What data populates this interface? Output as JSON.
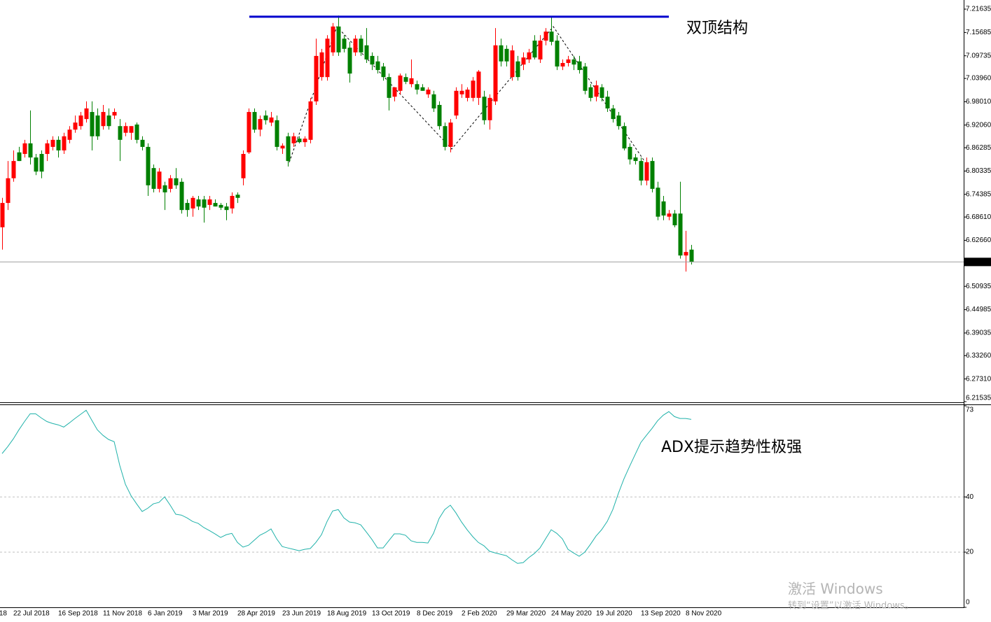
{
  "chart_data": [
    {
      "type": "candlestick",
      "categories": [
        null,
        null,
        "22 Jul 2018",
        null,
        null,
        null,
        null,
        null,
        null,
        null,
        "16 Sep 2018",
        null,
        null,
        null,
        null,
        null,
        null,
        null,
        "11 Nov 2018",
        null,
        null,
        null,
        null,
        null,
        null,
        null,
        "6 Jan 2019",
        null,
        null,
        null,
        null,
        null,
        null,
        null,
        "3 Mar 2019",
        null,
        null,
        null,
        null,
        null,
        null,
        null,
        "28 Apr 2019",
        null,
        null,
        null,
        null,
        null,
        null,
        null,
        "23 Jun 2019",
        null,
        null,
        null,
        null,
        null,
        null,
        null,
        "18 Aug 2019",
        null,
        null,
        null,
        null,
        null,
        null,
        null,
        "13 Oct 2019",
        null,
        null,
        null,
        null,
        null,
        null,
        null,
        "8 Dec 2019",
        null,
        null,
        null,
        null,
        null,
        null,
        null,
        "2 Feb 2020",
        null,
        null,
        null,
        null,
        null,
        null,
        null,
        "29 Mar 2020",
        null,
        null,
        null,
        null,
        null,
        null,
        null,
        "24 May 2020",
        null,
        null,
        null,
        null,
        null,
        null,
        null,
        "19 Jul 2020",
        null,
        null,
        null,
        null,
        null,
        null,
        null,
        "13 Sep 2020",
        null,
        null,
        null,
        null,
        null,
        null,
        null,
        "8 Nov 2020",
        null
      ],
      "x_edge_label": "18",
      "open": [
        6.66,
        6.722,
        6.785,
        6.851,
        6.847,
        6.874,
        6.838,
        6.847,
        6.847,
        6.865,
        6.883,
        6.856,
        6.883,
        6.909,
        6.918,
        6.936,
        6.954,
        6.945,
        6.918,
        6.945,
        6.945,
        6.918,
        6.901,
        6.901,
        6.922,
        6.883,
        6.865,
        6.811,
        6.758,
        6.767,
        6.758,
        6.785,
        6.776,
        6.722,
        6.708,
        6.731,
        6.731,
        6.717,
        6.722,
        6.717,
        6.713,
        6.708,
        6.743,
        6.785,
        6.851,
        6.954,
        6.909,
        6.945,
        6.927,
        6.933,
        6.861,
        6.892,
        6.874,
        6.886,
        6.877,
        6.883,
        6.981,
        7.043,
        7.043,
        7.106,
        7.172,
        7.141,
        7.118,
        7.106,
        7.141,
        7.124,
        7.097,
        7.083,
        7.07,
        7.043,
        6.993,
        7.008,
        7.043,
        7.025,
        7.025,
        7.017,
        6.999,
        6.999,
        6.972,
        6.918,
        6.865,
        6.945,
        6.999,
        6.99,
        6.99,
        6.99,
        6.993,
        6.933,
        6.981,
        7.124,
        7.115,
        7.043,
        7.083,
        7.075,
        7.088,
        7.136,
        7.088,
        7.136,
        7.159,
        7.136,
        7.07,
        7.079,
        7.088,
        7.083,
        7.07,
        7.017,
        6.993,
        7.017,
        6.993,
        6.963,
        6.945,
        6.918,
        6.865,
        6.838,
        6.829,
        6.779,
        6.829,
        6.761,
        6.726,
        6.687,
        6.695,
        6.695,
        6.588,
        6.603
      ],
      "high": [
        6.735,
        6.829,
        6.856,
        6.865,
        6.883,
        6.958,
        6.847,
        6.856,
        6.883,
        6.892,
        6.892,
        6.901,
        6.918,
        6.945,
        6.954,
        6.981,
        6.981,
        6.963,
        6.972,
        6.963,
        6.963,
        6.936,
        6.927,
        6.918,
        6.927,
        6.892,
        6.874,
        6.82,
        6.811,
        6.776,
        6.793,
        6.811,
        6.785,
        6.731,
        6.74,
        6.74,
        6.74,
        6.74,
        6.731,
        6.722,
        6.722,
        6.749,
        6.749,
        6.856,
        6.963,
        6.963,
        6.945,
        6.958,
        6.954,
        6.945,
        6.874,
        6.901,
        6.901,
        6.892,
        6.892,
        6.99,
        7.141,
        7.115,
        7.15,
        7.181,
        7.2,
        7.15,
        7.133,
        7.15,
        7.15,
        7.168,
        7.106,
        7.097,
        7.079,
        7.052,
        7.017,
        7.052,
        7.052,
        7.088,
        7.034,
        7.025,
        7.017,
        7.008,
        6.981,
        6.927,
        6.936,
        7.017,
        7.025,
        7.017,
        7.043,
        7.061,
        7.008,
        6.999,
        7.168,
        7.141,
        7.124,
        7.124,
        7.097,
        7.106,
        7.115,
        7.15,
        7.15,
        7.168,
        7.195,
        7.15,
        7.088,
        7.097,
        7.097,
        7.097,
        7.079,
        7.025,
        7.034,
        7.025,
        7.008,
        6.972,
        6.954,
        6.927,
        6.874,
        6.847,
        6.838,
        6.838,
        6.838,
        6.776,
        6.74,
        6.704,
        6.704,
        6.776,
        6.651,
        6.615
      ],
      "low": [
        6.603,
        6.704,
        6.776,
        6.829,
        6.838,
        6.82,
        6.793,
        6.785,
        6.829,
        6.856,
        6.838,
        6.847,
        6.874,
        6.901,
        6.909,
        6.927,
        6.856,
        6.883,
        6.909,
        6.909,
        6.936,
        6.829,
        6.892,
        6.883,
        6.874,
        6.856,
        6.74,
        6.749,
        6.749,
        6.704,
        6.749,
        6.758,
        6.695,
        6.687,
        6.687,
        6.704,
        6.672,
        6.704,
        6.713,
        6.704,
        6.678,
        6.695,
        6.722,
        6.767,
        6.847,
        6.901,
        6.892,
        6.922,
        6.918,
        6.856,
        6.847,
        6.815,
        6.865,
        6.874,
        6.865,
        6.874,
        6.972,
        7.034,
        7.034,
        7.097,
        7.097,
        7.106,
        7.029,
        7.097,
        7.097,
        7.079,
        7.061,
        7.052,
        7.034,
        6.958,
        6.981,
        6.999,
        7.025,
        7.017,
        6.999,
        7.008,
        6.99,
        6.954,
        6.909,
        6.856,
        6.851,
        6.936,
        6.99,
        6.981,
        6.981,
        6.972,
        6.922,
        6.909,
        6.972,
        7.07,
        7.07,
        7.034,
        7.034,
        7.061,
        7.079,
        7.088,
        7.079,
        7.124,
        7.124,
        7.061,
        7.061,
        7.07,
        7.061,
        7.052,
        6.999,
        6.981,
        6.981,
        6.981,
        6.954,
        6.927,
        6.909,
        6.856,
        6.82,
        6.82,
        6.767,
        6.767,
        6.749,
        6.678,
        6.678,
        6.678,
        6.66,
        6.58,
        6.547,
        6.565
      ],
      "close": [
        6.722,
        6.785,
        6.829,
        6.829,
        6.874,
        6.838,
        6.802,
        6.802,
        6.874,
        6.883,
        6.856,
        6.892,
        6.909,
        6.927,
        6.945,
        6.963,
        6.892,
        6.892,
        6.954,
        6.918,
        6.954,
        6.883,
        6.918,
        6.918,
        6.883,
        6.865,
        6.767,
        6.758,
        6.802,
        6.749,
        6.785,
        6.767,
        6.704,
        6.704,
        6.735,
        6.713,
        6.71,
        6.731,
        6.713,
        6.71,
        6.704,
        6.74,
        6.735,
        6.847,
        6.954,
        6.909,
        6.936,
        6.933,
        6.94,
        6.865,
        6.868,
        6.829,
        6.892,
        6.877,
        6.886,
        6.981,
        7.097,
        7.106,
        7.141,
        7.172,
        7.106,
        7.115,
        7.052,
        7.141,
        7.106,
        7.088,
        7.075,
        7.061,
        7.043,
        6.99,
        7.017,
        7.047,
        7.031,
        7.04,
        7.011,
        7.008,
        7.011,
        6.963,
        6.918,
        6.865,
        6.927,
        7.008,
        7.008,
        7.011,
        7.034,
        7.057,
        6.933,
        6.99,
        7.124,
        7.083,
        7.083,
        7.111,
        7.043,
        7.093,
        7.106,
        7.093,
        7.136,
        7.159,
        7.133,
        7.07,
        7.079,
        7.088,
        7.075,
        7.061,
        7.008,
        6.99,
        7.022,
        6.99,
        6.963,
        6.936,
        6.918,
        6.861,
        6.833,
        6.829,
        6.779,
        6.826,
        6.758,
        6.687,
        6.69,
        6.695,
        6.665,
        6.588,
        6.597,
        6.572
      ],
      "up_color": "#ff0000",
      "down_color": "#008000",
      "ylim": [
        6.2118,
        7.2396
      ],
      "yticks": [
        7.21635,
        7.15685,
        7.09735,
        {
          "value": 7.0396,
          "label": "7.03960"
        },
        {
          "value": 6.9801,
          "label": "6.98010"
        },
        {
          "value": 6.9206,
          "label": "6.92060"
        },
        6.86285,
        6.80335,
        6.74385,
        {
          "value": 6.6861,
          "label": "6.68610"
        },
        {
          "value": 6.6266,
          "label": "6.62660"
        },
        6.50935,
        6.44985,
        6.39035,
        {
          "value": 6.3326,
          "label": "6.33260"
        },
        {
          "value": 6.2731,
          "label": "6.27310"
        },
        6.21535
      ],
      "current_price": 6.57159,
      "resistance": {
        "value": 7.197,
        "color": "#0000cd"
      },
      "annotation": "双顶结构",
      "annotation_color": "#e8140c"
    },
    {
      "type": "line",
      "values": [
        55.7,
        58.2,
        61.0,
        64.3,
        67.3,
        70.1,
        70.1,
        68.6,
        67.3,
        66.6,
        66.1,
        65.3,
        66.8,
        68.4,
        69.9,
        71.4,
        67.8,
        64.3,
        62.3,
        60.8,
        60.0,
        51.4,
        44.6,
        40.5,
        37.5,
        34.7,
        35.9,
        37.5,
        38.0,
        40.0,
        37.0,
        33.7,
        33.4,
        32.4,
        31.1,
        30.4,
        28.9,
        27.8,
        26.6,
        25.3,
        26.3,
        26.8,
        23.5,
        21.8,
        22.5,
        24.3,
        26.1,
        27.1,
        28.4,
        24.8,
        22.0,
        21.5,
        21.0,
        20.5,
        21.0,
        21.3,
        23.5,
        26.3,
        31.1,
        34.9,
        35.4,
        32.4,
        30.9,
        30.6,
        29.9,
        27.3,
        24.6,
        21.5,
        21.5,
        24.1,
        26.6,
        26.6,
        26.1,
        24.1,
        23.5,
        23.5,
        23.3,
        26.8,
        32.2,
        35.4,
        37.0,
        34.2,
        30.9,
        28.1,
        25.6,
        23.5,
        22.3,
        20.3,
        19.7,
        19.2,
        18.7,
        17.2,
        15.9,
        16.2,
        18.0,
        19.5,
        21.5,
        24.8,
        28.1,
        26.8,
        24.8,
        21.0,
        19.7,
        18.5,
        20.0,
        22.8,
        25.8,
        28.1,
        31.1,
        35.4,
        41.3,
        46.6,
        51.1,
        55.4,
        59.7,
        62.3,
        64.8,
        67.6,
        69.6,
        70.9,
        69.1,
        68.4,
        68.4,
        68.1
      ],
      "color": "#20b2aa",
      "ylim": [
        0,
        73
      ],
      "yticks": [
        73,
        40,
        20,
        0
      ],
      "grid": true,
      "annotation": "ADX提示趋势性极强",
      "annotation_color": "#e8140c"
    }
  ],
  "watermark": {
    "title": "激活 Windows",
    "subtitle": "转到“设置”以激活 Windows。"
  }
}
